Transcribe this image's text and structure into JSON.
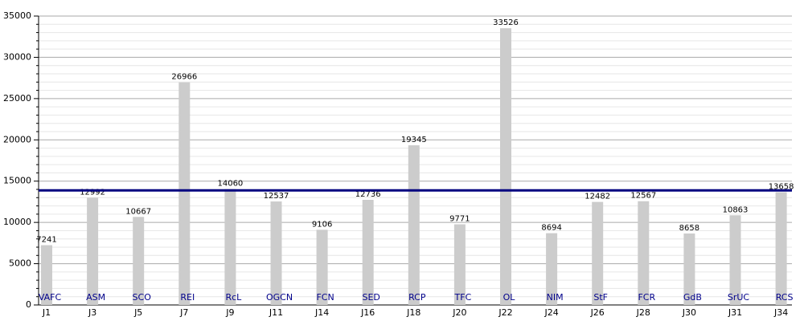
{
  "chart_data": {
    "type": "bar",
    "categories": [
      "J1",
      "J3",
      "J5",
      "J7",
      "J9",
      "J11",
      "J14",
      "J16",
      "J18",
      "J20",
      "J22",
      "J24",
      "J26",
      "J28",
      "J30",
      "J31",
      "J34"
    ],
    "opponents": [
      "VAFC",
      "ASM",
      "SCO",
      "REI",
      "RcL",
      "OGCN",
      "FCN",
      "SED",
      "RCP",
      "TFC",
      "OL",
      "NIM",
      "StF",
      "FCR",
      "GdB",
      "SrUC",
      "RCS"
    ],
    "values": [
      7241,
      12992,
      10667,
      26966,
      14060,
      12537,
      9106,
      12736,
      19345,
      9771,
      33526,
      8694,
      12482,
      12567,
      8658,
      10863,
      13658
    ],
    "color": "#cccccc",
    "reference_line": {
      "value": 13875,
      "color": "#000080"
    },
    "ylim": [
      0,
      35000
    ],
    "yticks": [
      0,
      5000,
      10000,
      15000,
      20000,
      25000,
      30000,
      35000
    ],
    "minor_yticks": [
      1000,
      2000,
      3000,
      4000,
      6000,
      7000,
      8000,
      9000,
      11000,
      12000,
      13000,
      14000,
      16000,
      17000,
      18000,
      19000,
      21000,
      22000,
      23000,
      24000,
      26000,
      27000,
      28000,
      29000,
      31000,
      32000,
      33000,
      34000
    ],
    "grid": true
  }
}
